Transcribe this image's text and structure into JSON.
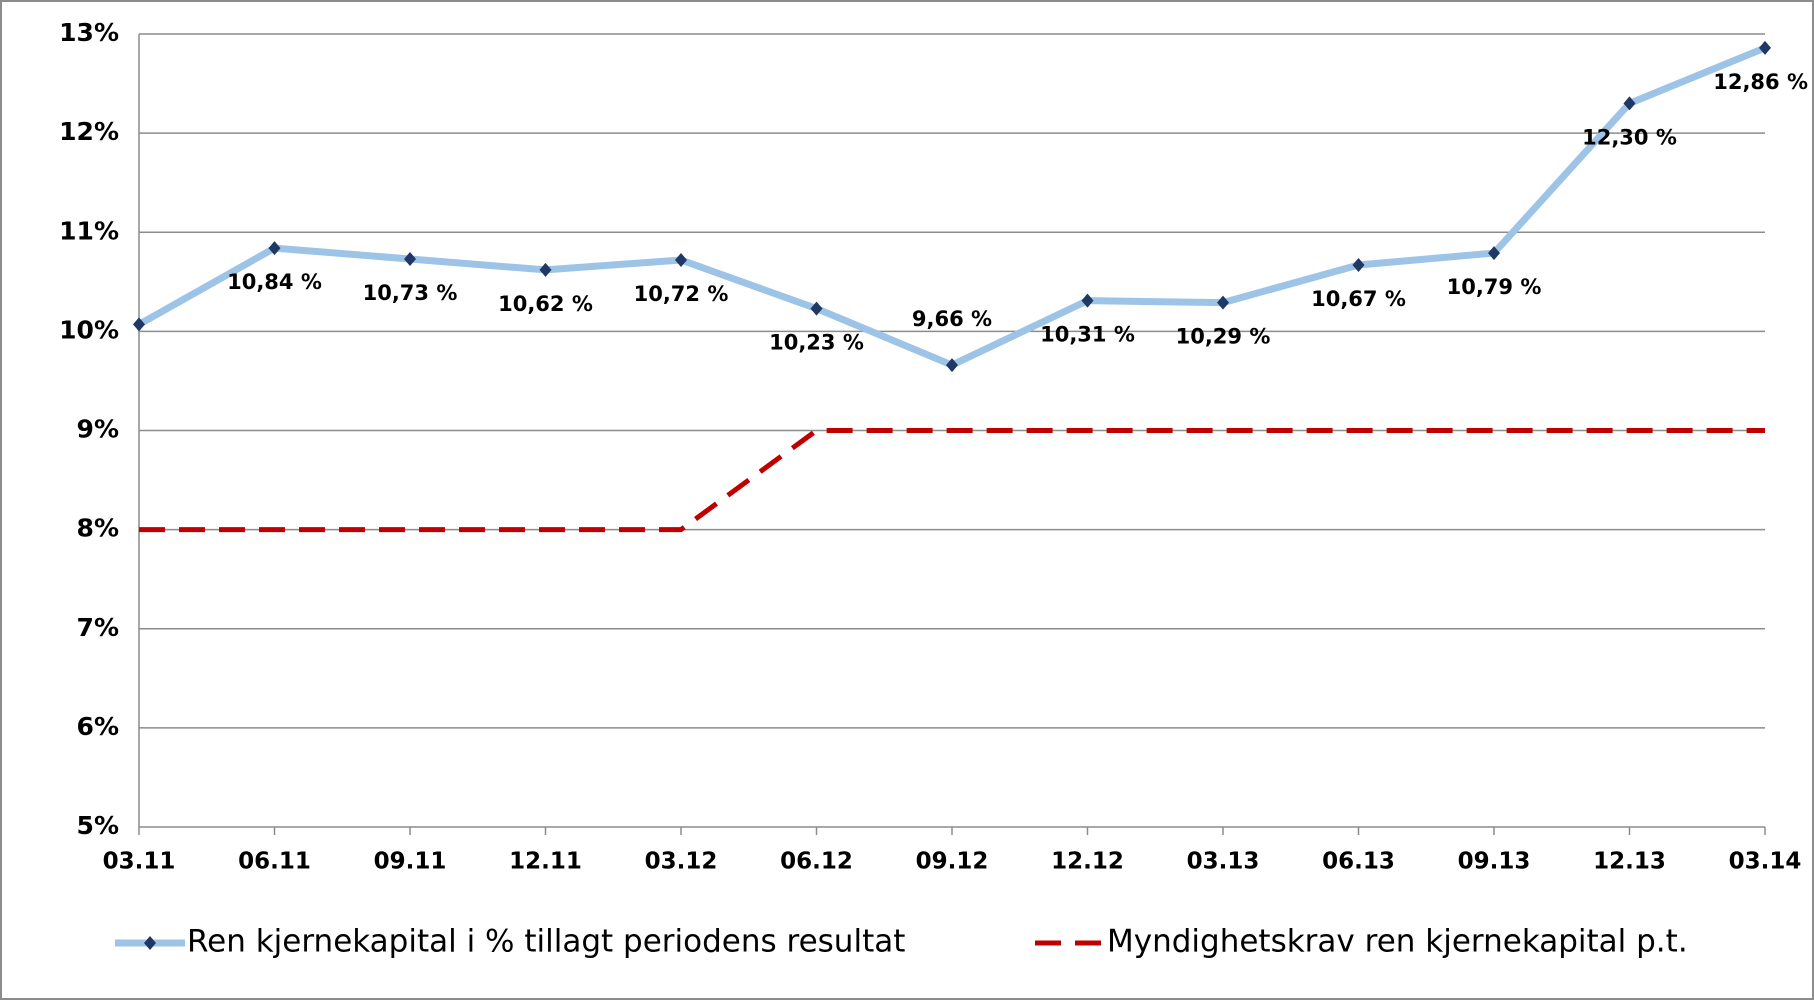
{
  "chart_data": {
    "type": "line",
    "categories": [
      "03.11",
      "06.11",
      "09.11",
      "12.11",
      "03.12",
      "06.12",
      "09.12",
      "12.12",
      "03.13",
      "06.13",
      "09.13",
      "12.13",
      "03.14"
    ],
    "series": [
      {
        "name": "Ren kjernekapital i % tillagt periodens resultat",
        "color": "#9dc3e6",
        "marker_color": "#1f3864",
        "style": "solid",
        "values": [
          10.07,
          10.84,
          10.73,
          10.62,
          10.72,
          10.23,
          9.66,
          10.31,
          10.29,
          10.67,
          10.79,
          12.3,
          12.86
        ],
        "value_labels": [
          null,
          "10,84 %",
          "10,73 %",
          "10,62 %",
          "10,72 %",
          "10,23 %",
          "9,66 %",
          "10,31 %",
          "10,29 %",
          "10,67 %",
          "10,79 %",
          "12,30 %",
          "12,86 %"
        ]
      },
      {
        "name": "Myndighetskrav ren kjernekapital p.t.",
        "color": "#c00000",
        "style": "dashed",
        "values": [
          8,
          8,
          8,
          8,
          8,
          9,
          9,
          9,
          9,
          9,
          9,
          9,
          9
        ]
      }
    ],
    "ylim": [
      5,
      13
    ],
    "yticks": [
      {
        "value": 5,
        "label": "5%"
      },
      {
        "value": 6,
        "label": "6%"
      },
      {
        "value": 7,
        "label": "7%"
      },
      {
        "value": 8,
        "label": "8%"
      },
      {
        "value": 9,
        "label": "9%"
      },
      {
        "value": 10,
        "label": "10%"
      },
      {
        "value": 11,
        "label": "11%"
      },
      {
        "value": 12,
        "label": "12%"
      },
      {
        "value": 13,
        "label": "13%"
      }
    ],
    "grid": true,
    "legend": "bottom"
  }
}
